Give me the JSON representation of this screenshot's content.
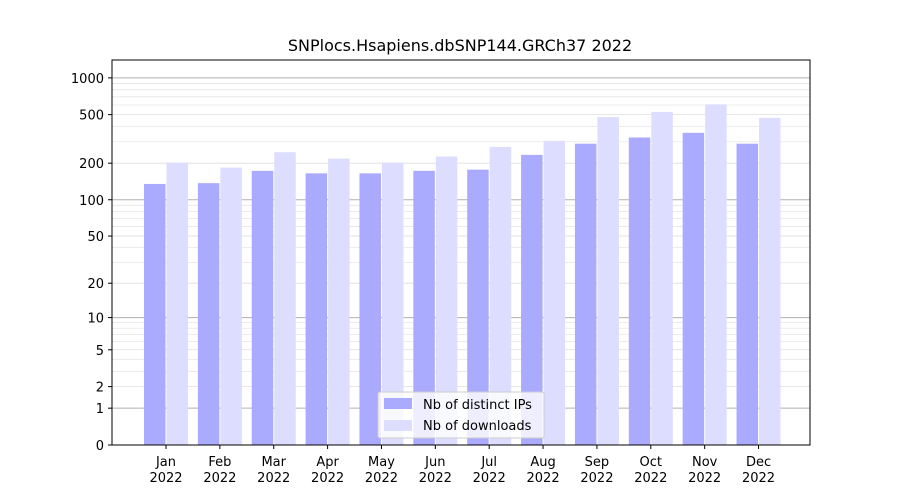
{
  "chart_data": {
    "type": "bar",
    "title": "SNPlocs.Hsapiens.dbSNP144.GRCh37 2022",
    "xlabel": "",
    "ylabel": "",
    "y_scale": "log(1+y)",
    "ylim": [
      0,
      1400
    ],
    "y_ticks": [
      0,
      1,
      2,
      5,
      10,
      20,
      50,
      100,
      200,
      500,
      1000
    ],
    "categories": [
      [
        "Jan",
        "2022"
      ],
      [
        "Feb",
        "2022"
      ],
      [
        "Mar",
        "2022"
      ],
      [
        "Apr",
        "2022"
      ],
      [
        "May",
        "2022"
      ],
      [
        "Jun",
        "2022"
      ],
      [
        "Jul",
        "2022"
      ],
      [
        "Aug",
        "2022"
      ],
      [
        "Sep",
        "2022"
      ],
      [
        "Oct",
        "2022"
      ],
      [
        "Nov",
        "2022"
      ],
      [
        "Dec",
        "2022"
      ]
    ],
    "series": [
      {
        "name": "Nb of distinct IPs",
        "color": "#aaaaff",
        "values": [
          135,
          137,
          173,
          165,
          165,
          173,
          177,
          234,
          289,
          325,
          355,
          289
        ]
      },
      {
        "name": "Nb of downloads",
        "color": "#ddddff",
        "values": [
          202,
          184,
          246,
          218,
          202,
          227,
          272,
          305,
          478,
          526,
          607,
          470
        ]
      }
    ],
    "legend_position": "bottom-center",
    "grid": true
  }
}
